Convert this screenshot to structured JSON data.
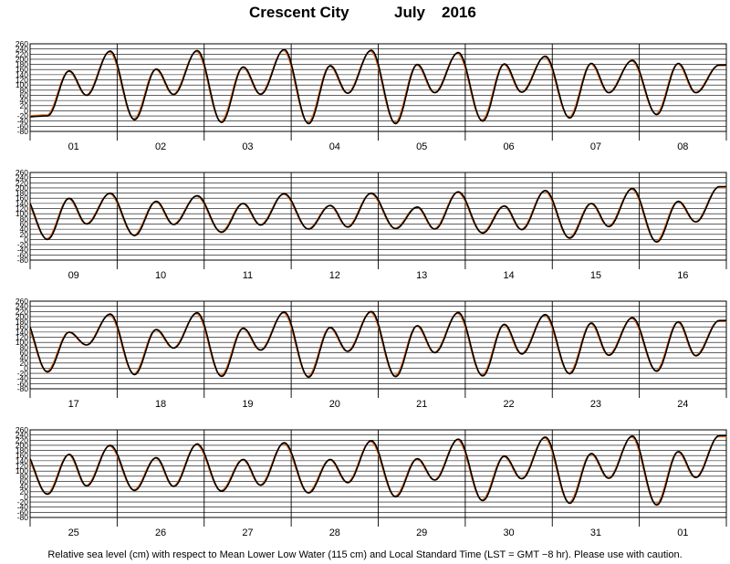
{
  "header": {
    "station": "Crescent City",
    "month": "July",
    "year": "2016"
  },
  "caption": "Relative sea level (cm) with respect to Mean Lower Low Water (115 cm) and Local Standard Time (LST = GMT −8 hr). Please use with caution.",
  "colors": {
    "observed": "#000000",
    "predicted": "#e06a1e",
    "grid": "#000000"
  },
  "chart_data": {
    "type": "line",
    "ylim": [
      -80,
      260
    ],
    "y_ticks": [
      -80,
      -60,
      -40,
      -20,
      0,
      20,
      40,
      60,
      80,
      100,
      120,
      140,
      160,
      180,
      200,
      220,
      240,
      260
    ],
    "panels": [
      {
        "day_labels": [
          "01",
          "02",
          "03",
          "04",
          "05",
          "06",
          "07",
          "08"
        ],
        "tide": [
          {
            "hh": -24,
            "hl": 0,
            "lh": 0
          },
          {
            "hh": 232,
            "hl": 155,
            "lh": 60,
            "ll": -20
          },
          {
            "hh": 234,
            "hl": 162,
            "lh": 63,
            "ll": -35
          },
          {
            "hh": 238,
            "hl": 170,
            "lh": 64,
            "ll": -45
          },
          {
            "hh": 235,
            "hl": 175,
            "lh": 68,
            "ll": -50
          },
          {
            "hh": 226,
            "hl": 180,
            "lh": 70,
            "ll": -50
          },
          {
            "hh": 212,
            "hl": 182,
            "lh": 72,
            "ll": -40
          },
          {
            "hh": 196,
            "hl": 184,
            "lh": 70,
            "ll": -28
          },
          {
            "hh": 178,
            "hl": 184,
            "lh": 70,
            "ll": -15
          }
        ]
      },
      {
        "day_labels": [
          "09",
          "10",
          "11",
          "12",
          "13",
          "14",
          "15",
          "16"
        ],
        "tide": [
          {
            "hh": 172,
            "hl": 0,
            "lh": 0
          },
          {
            "hh": 180,
            "hl": 160,
            "lh": 60,
            "ll": 0
          },
          {
            "hh": 170,
            "hl": 148,
            "lh": 58,
            "ll": 15
          },
          {
            "hh": 178,
            "hl": 140,
            "lh": 56,
            "ll": 28
          },
          {
            "hh": 180,
            "hl": 132,
            "lh": 48,
            "ll": 40
          },
          {
            "hh": 185,
            "hl": 126,
            "lh": 40,
            "ll": 42
          },
          {
            "hh": 190,
            "hl": 130,
            "lh": 38,
            "ll": 25
          },
          {
            "hh": 198,
            "hl": 140,
            "lh": 50,
            "ll": 5
          },
          {
            "hh": 205,
            "hl": 148,
            "lh": 68,
            "ll": -10
          }
        ]
      },
      {
        "day_labels": [
          "17",
          "18",
          "19",
          "20",
          "21",
          "22",
          "23",
          "24"
        ],
        "tide": [
          {
            "hh": 200,
            "hl": 0,
            "lh": 0
          },
          {
            "hh": 210,
            "hl": 140,
            "lh": 90,
            "ll": -15
          },
          {
            "hh": 215,
            "hl": 150,
            "lh": 78,
            "ll": -25
          },
          {
            "hh": 218,
            "hl": 155,
            "lh": 70,
            "ll": -32
          },
          {
            "hh": 220,
            "hl": 158,
            "lh": 65,
            "ll": -35
          },
          {
            "hh": 216,
            "hl": 165,
            "lh": 60,
            "ll": -33
          },
          {
            "hh": 208,
            "hl": 170,
            "lh": 55,
            "ll": -30
          },
          {
            "hh": 196,
            "hl": 175,
            "lh": 50,
            "ll": -22
          },
          {
            "hh": 185,
            "hl": 180,
            "lh": 48,
            "ll": -12
          }
        ]
      },
      {
        "day_labels": [
          "25",
          "26",
          "27",
          "28",
          "29",
          "30",
          "31",
          "01"
        ],
        "tide": [
          {
            "hh": 180,
            "hl": 0,
            "lh": 0
          },
          {
            "hh": 200,
            "hl": 165,
            "lh": 42,
            "ll": 10
          },
          {
            "hh": 205,
            "hl": 152,
            "lh": 40,
            "ll": 25
          },
          {
            "hh": 210,
            "hl": 145,
            "lh": 45,
            "ll": 22
          },
          {
            "hh": 218,
            "hl": 145,
            "lh": 55,
            "ll": 15
          },
          {
            "hh": 224,
            "hl": 148,
            "lh": 65,
            "ll": 0
          },
          {
            "hh": 232,
            "hl": 158,
            "lh": 70,
            "ll": -15
          },
          {
            "hh": 236,
            "hl": 168,
            "lh": 72,
            "ll": -25
          },
          {
            "hh": 238,
            "hl": 176,
            "lh": 75,
            "ll": -32
          }
        ]
      }
    ]
  }
}
